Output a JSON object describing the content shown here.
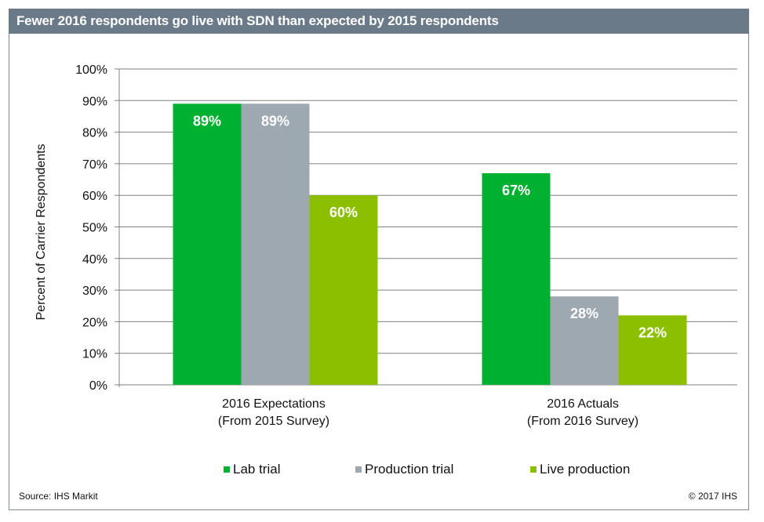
{
  "header": {
    "title": "Fewer 2016 respondents go live with SDN than expected by 2015 respondents"
  },
  "footer": {
    "source": "Source: IHS Markit",
    "copyright": "© 2017 IHS"
  },
  "chart_data": {
    "type": "bar",
    "title": "Fewer 2016 respondents go live with SDN than expected by 2015 respondents",
    "xlabel": "",
    "ylabel": "Percent of Carrier Respondents",
    "ylim": [
      0,
      100
    ],
    "yticks": [
      "0%",
      "10%",
      "20%",
      "30%",
      "40%",
      "50%",
      "60%",
      "70%",
      "80%",
      "90%",
      "100%"
    ],
    "grid": true,
    "legend_position": "bottom",
    "categories": [
      {
        "line1": "2016 Expectations",
        "line2": "(From 2015 Survey)"
      },
      {
        "line1": "2016 Actuals",
        "line2": "(From 2016 Survey)"
      }
    ],
    "series": [
      {
        "name": "Lab trial",
        "color": "#00b030",
        "values": [
          89,
          67
        ],
        "labels": [
          "89%",
          "67%"
        ]
      },
      {
        "name": "Production trial",
        "color": "#9ea8b0",
        "values": [
          89,
          28
        ],
        "labels": [
          "89%",
          "28%"
        ]
      },
      {
        "name": "Live production",
        "color": "#8cbf00",
        "values": [
          60,
          22
        ],
        "labels": [
          "60%",
          "22%"
        ]
      }
    ]
  }
}
